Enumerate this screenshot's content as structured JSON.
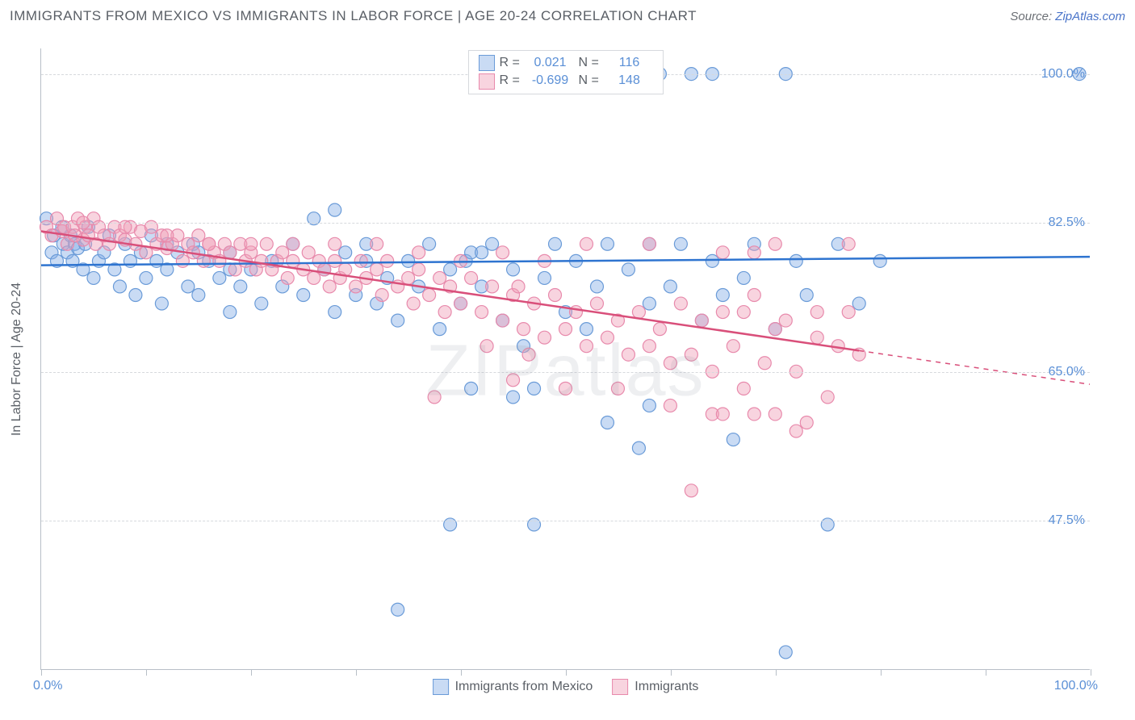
{
  "header": {
    "title": "IMMIGRANTS FROM MEXICO VS IMMIGRANTS IN LABOR FORCE | AGE 20-24 CORRELATION CHART",
    "source_prefix": "Source: ",
    "source_link": "ZipAtlas.com"
  },
  "watermark": "ZIPatlas",
  "chart": {
    "type": "scatter",
    "y_axis_title": "In Labor Force | Age 20-24",
    "x_domain": [
      0,
      100
    ],
    "y_domain": [
      30,
      103
    ],
    "y_gridlines": [
      47.5,
      65.0,
      82.5,
      100.0
    ],
    "y_tick_labels": [
      "47.5%",
      "65.0%",
      "82.5%",
      "100.0%"
    ],
    "x_ticks": [
      0,
      10,
      20,
      30,
      40,
      50,
      60,
      70,
      80,
      90,
      100
    ],
    "x_min_label": "0.0%",
    "x_max_label": "100.0%",
    "background_color": "#ffffff",
    "grid_color": "#d6d9dd",
    "axis_color": "#b8bfc7",
    "watermark_color": "rgba(140,150,160,0.15)",
    "marker_radius": 8,
    "marker_stroke_width": 1.2,
    "line_width": 2.5,
    "series": [
      {
        "id": "mexico",
        "name": "Immigrants from Mexico",
        "fill": "rgba(135,175,230,0.45)",
        "stroke": "#6a9bd8",
        "line_color": "#2e74d0",
        "r_value": "0.021",
        "n_value": "116",
        "regression": {
          "x1": 0,
          "y1": 77.5,
          "x2": 100,
          "y2": 78.5,
          "solid_until_x": 100
        },
        "points": [
          [
            0.5,
            83
          ],
          [
            1,
            79
          ],
          [
            1.2,
            81
          ],
          [
            1.5,
            78
          ],
          [
            2,
            82
          ],
          [
            2.1,
            80
          ],
          [
            2.5,
            79
          ],
          [
            2.8,
            81
          ],
          [
            3,
            78
          ],
          [
            3.2,
            80
          ],
          [
            3.5,
            79.5
          ],
          [
            4,
            77
          ],
          [
            4.2,
            80
          ],
          [
            4.5,
            82
          ],
          [
            5,
            76
          ],
          [
            5.5,
            78
          ],
          [
            6,
            79
          ],
          [
            6.5,
            81
          ],
          [
            7,
            77
          ],
          [
            7.5,
            75
          ],
          [
            8,
            80
          ],
          [
            8.5,
            78
          ],
          [
            9,
            74
          ],
          [
            9.5,
            79
          ],
          [
            10,
            76
          ],
          [
            10.5,
            81
          ],
          [
            11,
            78
          ],
          [
            11.5,
            73
          ],
          [
            12,
            77
          ],
          [
            13,
            79
          ],
          [
            14,
            75
          ],
          [
            14.5,
            80
          ],
          [
            15,
            74
          ],
          [
            16,
            78
          ],
          [
            17,
            76
          ],
          [
            18,
            72
          ],
          [
            18,
            79
          ],
          [
            19,
            75
          ],
          [
            20,
            77
          ],
          [
            21,
            73
          ],
          [
            22,
            78
          ],
          [
            23,
            75
          ],
          [
            24,
            80
          ],
          [
            25,
            74
          ],
          [
            26,
            83
          ],
          [
            27,
            77
          ],
          [
            28,
            72
          ],
          [
            29,
            79
          ],
          [
            30,
            74
          ],
          [
            31,
            78
          ],
          [
            31,
            80
          ],
          [
            32,
            73
          ],
          [
            33,
            76
          ],
          [
            34,
            71
          ],
          [
            35,
            78
          ],
          [
            36,
            75
          ],
          [
            37,
            80
          ],
          [
            38,
            70
          ],
          [
            39,
            77
          ],
          [
            40,
            73
          ],
          [
            40.5,
            78
          ],
          [
            41,
            63
          ],
          [
            42,
            75
          ],
          [
            43,
            80
          ],
          [
            44,
            71
          ],
          [
            45,
            77
          ],
          [
            46,
            68
          ],
          [
            47,
            63
          ],
          [
            48,
            76
          ],
          [
            49,
            80
          ],
          [
            50,
            72
          ],
          [
            51,
            78
          ],
          [
            52,
            70
          ],
          [
            53,
            75
          ],
          [
            54,
            80
          ],
          [
            55,
            100
          ],
          [
            56,
            77
          ],
          [
            57,
            100
          ],
          [
            58,
            73
          ],
          [
            59,
            100
          ],
          [
            60,
            75
          ],
          [
            61,
            80
          ],
          [
            62,
            100
          ],
          [
            63,
            71
          ],
          [
            64,
            78
          ],
          [
            65,
            74
          ],
          [
            66,
            57
          ],
          [
            67,
            76
          ],
          [
            68,
            80
          ],
          [
            70,
            70
          ],
          [
            71,
            32
          ],
          [
            72,
            78
          ],
          [
            73,
            74
          ],
          [
            75,
            47
          ],
          [
            76,
            80
          ],
          [
            78,
            73
          ],
          [
            80,
            78
          ],
          [
            39,
            47
          ],
          [
            47,
            47
          ],
          [
            57,
            56
          ],
          [
            58,
            61
          ],
          [
            28,
            84
          ],
          [
            64,
            100
          ],
          [
            49,
            100
          ],
          [
            51,
            100
          ],
          [
            34,
            37
          ],
          [
            54,
            59
          ],
          [
            71,
            100
          ],
          [
            99,
            100
          ],
          [
            41,
            79
          ],
          [
            45,
            62
          ],
          [
            58,
            80
          ],
          [
            42,
            79
          ],
          [
            12,
            80
          ],
          [
            15,
            79
          ],
          [
            18,
            77
          ]
        ]
      },
      {
        "id": "immigrants",
        "name": "Immigrants",
        "fill": "rgba(240,160,185,0.45)",
        "stroke": "#e88aac",
        "line_color": "#d94f7a",
        "r_value": "-0.699",
        "n_value": "148",
        "regression": {
          "x1": 0,
          "y1": 81.5,
          "x2": 100,
          "y2": 63.5,
          "solid_until_x": 78
        },
        "points": [
          [
            0.5,
            82
          ],
          [
            1,
            81
          ],
          [
            1.5,
            83
          ],
          [
            2,
            81.5
          ],
          [
            2.2,
            82
          ],
          [
            2.5,
            80
          ],
          [
            3,
            82
          ],
          [
            3.2,
            81
          ],
          [
            3.5,
            83
          ],
          [
            4,
            80.5
          ],
          [
            4.2,
            82
          ],
          [
            4.5,
            81
          ],
          [
            5,
            83
          ],
          [
            5.2,
            80
          ],
          [
            5.5,
            82
          ],
          [
            6,
            81
          ],
          [
            6.5,
            80
          ],
          [
            7,
            82
          ],
          [
            7.5,
            81
          ],
          [
            8,
            80.5
          ],
          [
            8.5,
            82
          ],
          [
            9,
            80
          ],
          [
            9.5,
            81.5
          ],
          [
            10,
            79
          ],
          [
            10.5,
            82
          ],
          [
            11,
            80
          ],
          [
            11.5,
            81
          ],
          [
            12,
            79.5
          ],
          [
            12.5,
            80
          ],
          [
            13,
            81
          ],
          [
            13.5,
            78
          ],
          [
            14,
            80
          ],
          [
            14.5,
            79
          ],
          [
            15,
            81
          ],
          [
            15.5,
            78
          ],
          [
            16,
            80
          ],
          [
            16.5,
            79
          ],
          [
            17,
            78
          ],
          [
            17.5,
            80
          ],
          [
            18,
            79
          ],
          [
            18.5,
            77
          ],
          [
            19,
            80
          ],
          [
            19.5,
            78
          ],
          [
            20,
            79
          ],
          [
            20.5,
            77
          ],
          [
            21,
            78
          ],
          [
            21.5,
            80
          ],
          [
            22,
            77
          ],
          [
            22.5,
            78
          ],
          [
            23,
            79
          ],
          [
            23.5,
            76
          ],
          [
            24,
            78
          ],
          [
            25,
            77
          ],
          [
            25.5,
            79
          ],
          [
            26,
            76
          ],
          [
            26.5,
            78
          ],
          [
            27,
            77
          ],
          [
            27.5,
            75
          ],
          [
            28,
            78
          ],
          [
            28.5,
            76
          ],
          [
            29,
            77
          ],
          [
            30,
            75
          ],
          [
            30.5,
            78
          ],
          [
            31,
            76
          ],
          [
            32,
            77
          ],
          [
            32.5,
            74
          ],
          [
            33,
            78
          ],
          [
            34,
            75
          ],
          [
            35,
            76
          ],
          [
            35.5,
            73
          ],
          [
            36,
            77
          ],
          [
            37,
            74
          ],
          [
            38,
            76
          ],
          [
            38.5,
            72
          ],
          [
            39,
            75
          ],
          [
            40,
            73
          ],
          [
            41,
            76
          ],
          [
            42,
            72
          ],
          [
            42.5,
            68
          ],
          [
            43,
            75
          ],
          [
            44,
            71
          ],
          [
            45,
            74
          ],
          [
            46,
            70
          ],
          [
            46.5,
            67
          ],
          [
            47,
            73
          ],
          [
            48,
            69
          ],
          [
            49,
            74
          ],
          [
            50,
            70
          ],
          [
            51,
            72
          ],
          [
            52,
            68
          ],
          [
            53,
            73
          ],
          [
            54,
            69
          ],
          [
            55,
            71
          ],
          [
            56,
            67
          ],
          [
            57,
            72
          ],
          [
            58,
            68
          ],
          [
            59,
            70
          ],
          [
            60,
            66
          ],
          [
            61,
            73
          ],
          [
            62,
            67
          ],
          [
            63,
            71
          ],
          [
            64,
            65
          ],
          [
            65,
            72
          ],
          [
            66,
            68
          ],
          [
            67,
            63
          ],
          [
            68,
            74
          ],
          [
            69,
            66
          ],
          [
            70,
            60
          ],
          [
            71,
            71
          ],
          [
            72,
            65
          ],
          [
            73,
            59
          ],
          [
            74,
            69
          ],
          [
            75,
            62
          ],
          [
            76,
            68
          ],
          [
            77,
            80
          ],
          [
            78,
            67
          ],
          [
            37.5,
            62
          ],
          [
            45,
            64
          ],
          [
            50,
            63
          ],
          [
            55,
            63
          ],
          [
            60,
            61
          ],
          [
            64,
            60
          ],
          [
            67,
            72
          ],
          [
            70,
            70
          ],
          [
            72,
            58
          ],
          [
            68,
            60
          ],
          [
            65,
            60
          ],
          [
            58,
            80
          ],
          [
            52,
            80
          ],
          [
            48,
            78
          ],
          [
            44,
            79
          ],
          [
            40,
            78
          ],
          [
            36,
            79
          ],
          [
            32,
            80
          ],
          [
            28,
            80
          ],
          [
            24,
            80
          ],
          [
            20,
            80
          ],
          [
            16,
            80
          ],
          [
            12,
            81
          ],
          [
            8,
            82
          ],
          [
            4,
            82.5
          ],
          [
            62,
            51
          ],
          [
            74,
            72
          ],
          [
            77,
            72
          ],
          [
            70,
            80
          ],
          [
            65,
            79
          ],
          [
            68,
            79
          ],
          [
            45.5,
            75
          ]
        ]
      }
    ],
    "legend_top": {
      "r_label": "R =",
      "n_label": "N ="
    },
    "legend_bottom_labels": [
      "Immigrants from Mexico",
      "Immigrants"
    ]
  }
}
